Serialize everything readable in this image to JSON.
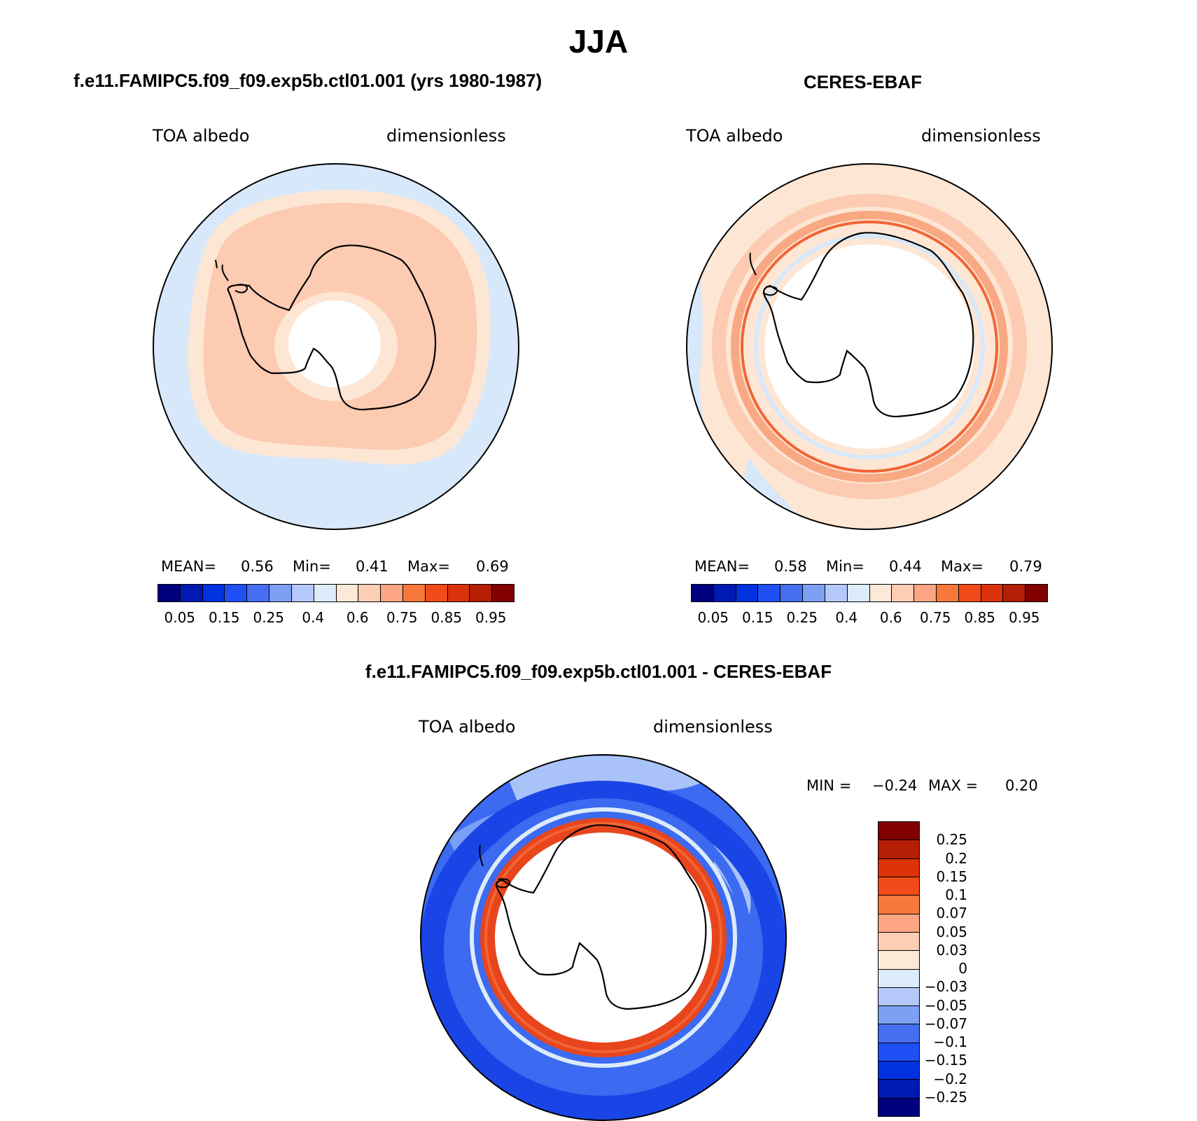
{
  "title": "JJA",
  "panels": [
    {
      "title": "f.e11.FAMIPC5.f09_f09.exp5b.ctl01.001 (yrs 1980-1987)",
      "variable": "TOA albedo",
      "units": "dimensionless",
      "stats": {
        "mean_label": "MEAN=",
        "mean": "0.56",
        "min_label": "Min=",
        "min": "0.41",
        "max_label": "Max=",
        "max": "0.69"
      }
    },
    {
      "title": "CERES-EBAF",
      "variable": "TOA albedo",
      "units": "dimensionless",
      "stats": {
        "mean_label": "MEAN=",
        "mean": "0.58",
        "min_label": "Min=",
        "min": "0.44",
        "max_label": "Max=",
        "max": "0.79"
      }
    },
    {
      "title": "f.e11.FAMIPC5.f09_f09.exp5b.ctl01.001 - CERES-EBAF",
      "variable": "TOA albedo",
      "units": "dimensionless",
      "stats": {
        "min_label": "MIN =",
        "min": "−0.24",
        "max_label": "MAX =",
        "max": "0.20"
      }
    }
  ],
  "colorbar_abs": {
    "labels": [
      "0.05",
      "0.15",
      "0.25",
      "0.4",
      "0.6",
      "0.75",
      "0.85",
      "0.95"
    ],
    "colors": [
      "#00007f",
      "#0019b2",
      "#0032e0",
      "#1e50f5",
      "#466ef0",
      "#7da0f5",
      "#b4c8fa",
      "#dcebfa",
      "#fde9d8",
      "#fdcdb4",
      "#fca582",
      "#f8783c",
      "#f04b19",
      "#dc320a",
      "#b41e05",
      "#820000"
    ]
  },
  "colorbar_diff": {
    "labels": [
      "0.25",
      "0.2",
      "0.15",
      "0.1",
      "0.07",
      "0.05",
      "0.03",
      "0",
      "−0.03",
      "−0.05",
      "−0.07",
      "−0.1",
      "−0.15",
      "−0.2",
      "−0.25"
    ],
    "colors": [
      "#820000",
      "#b41e05",
      "#dc320a",
      "#f04b19",
      "#f8783c",
      "#fca582",
      "#fdcdb4",
      "#fde9d8",
      "#dcebfa",
      "#b4c8fa",
      "#7da0f5",
      "#466ef0",
      "#1e50f5",
      "#0032e0",
      "#0019b2",
      "#00007f"
    ]
  },
  "map_colors": {
    "light_blue": "#d7e8fa",
    "pale_peach": "#fde6d4",
    "peach": "#fccbb2",
    "salmon": "#f9a884",
    "orange": "#f26535",
    "red_orange": "#e8451d",
    "blue_mid": "#3c6af0",
    "blue_dark": "#1a45e6",
    "blue_light": "#7aa0f5",
    "blue_pale": "#a9c3f8"
  }
}
